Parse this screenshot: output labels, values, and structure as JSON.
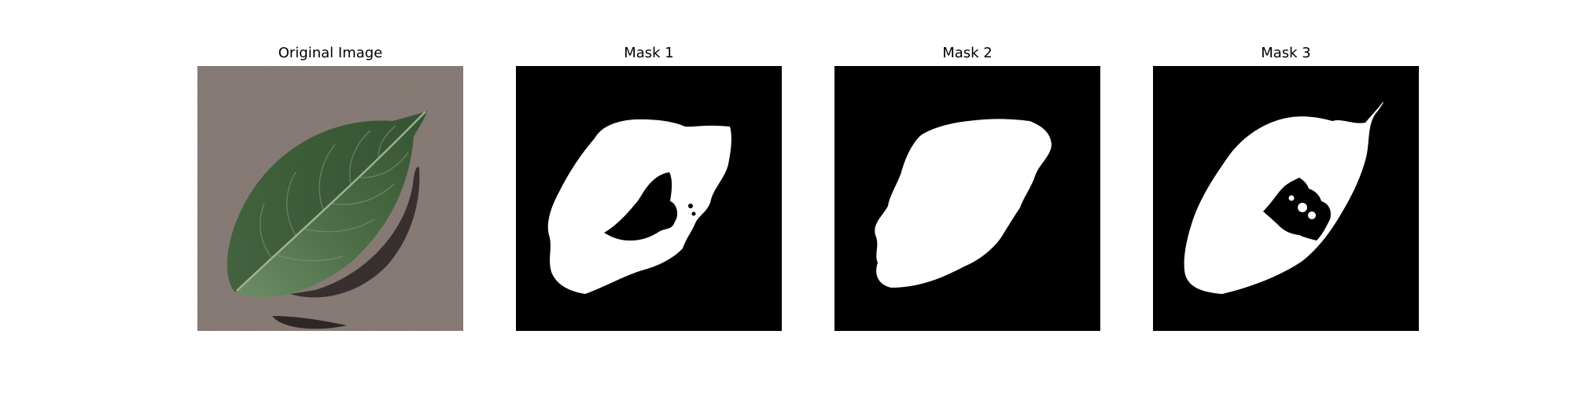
{
  "figure": {
    "panels": [
      {
        "title": "Original Image"
      },
      {
        "title": "Mask 1"
      },
      {
        "title": "Mask 2"
      },
      {
        "title": "Mask 3"
      }
    ],
    "colors": {
      "background_surface": "#8c7f7a",
      "leaf_dark": "#3b5c38",
      "leaf_light": "#5f7f59",
      "leaf_shadow": "#2a2322",
      "mask_background": "#000000",
      "mask_foreground": "#ffffff"
    }
  }
}
